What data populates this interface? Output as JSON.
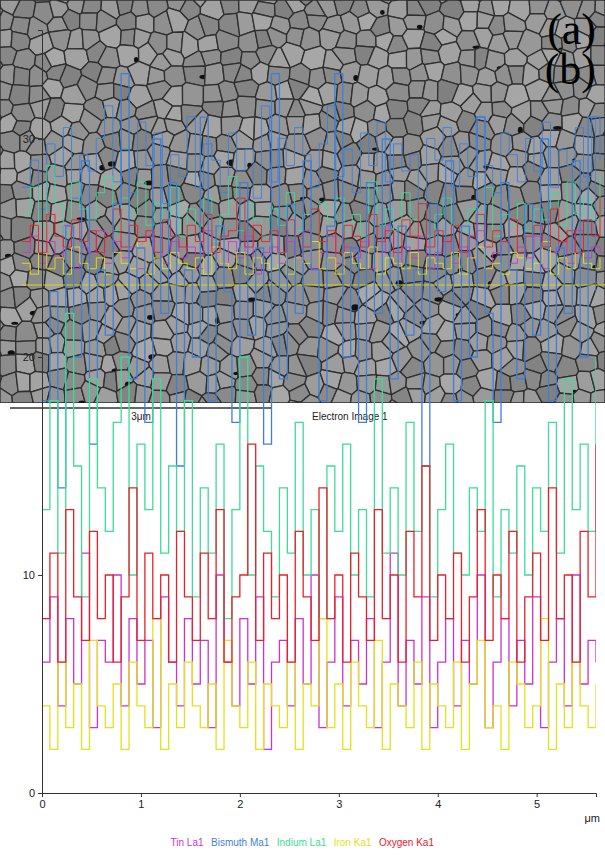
{
  "chart_data": [
    {
      "type": "image",
      "title": "(a)",
      "annotations": [
        "3μm",
        "Electron Image 1"
      ]
    },
    {
      "type": "line",
      "title": "(b)",
      "xlabel": "μm",
      "x": [
        0,
        0.08,
        0.16,
        0.24,
        0.32,
        0.4,
        0.48,
        0.56,
        0.64,
        0.72,
        0.8,
        0.88,
        0.96,
        1.04,
        1.12,
        1.2,
        1.28,
        1.36,
        1.44,
        1.52,
        1.6,
        1.68,
        1.76,
        1.84,
        1.92,
        2,
        2.08,
        2.16,
        2.24,
        2.32,
        2.4,
        2.48,
        2.56,
        2.64,
        2.72,
        2.8,
        2.88,
        2.96,
        3.04,
        3.12,
        3.2,
        3.28,
        3.36,
        3.44,
        3.52,
        3.6,
        3.68,
        3.76,
        3.84,
        3.92,
        4,
        4.08,
        4.16,
        4.24,
        4.32,
        4.4,
        4.48,
        4.56,
        4.64,
        4.72,
        4.8,
        4.88,
        4.96,
        5.04,
        5.12,
        5.2,
        5.28,
        5.36,
        5.44,
        5.52,
        5.6
      ],
      "series": [
        {
          "name": "Tin La1",
          "color": "#cc33cc",
          "values": [
            6,
            9,
            4,
            8,
            5,
            11,
            3,
            7,
            6,
            10,
            4,
            8,
            5,
            7,
            3,
            9,
            6,
            4,
            8,
            5,
            7,
            3,
            10,
            6,
            4,
            8,
            5,
            9,
            2,
            6,
            7,
            4,
            8,
            5,
            10,
            3,
            6,
            9,
            4,
            7,
            5,
            8,
            3,
            6,
            11,
            4,
            7,
            5,
            9,
            3,
            6,
            8,
            4,
            7,
            5,
            10,
            3,
            6,
            8,
            4,
            7,
            5,
            9,
            3,
            6,
            8,
            4,
            10,
            5,
            7,
            6
          ]
        },
        {
          "name": "Bismuth Ma1",
          "color": "#3f7fd9",
          "values": [
            18,
            23,
            14,
            26,
            20,
            29,
            16,
            24,
            21,
            27,
            33,
            19,
            25,
            17,
            30,
            22,
            28,
            15,
            24,
            20,
            31,
            18,
            26,
            23,
            17,
            28,
            21,
            25,
            16,
            33,
            19,
            27,
            22,
            29,
            24,
            18,
            26,
            33,
            20,
            25,
            17,
            28,
            22,
            30,
            19,
            26,
            21,
            24,
            15,
            27,
            23,
            29,
            18,
            26,
            20,
            31,
            22,
            17,
            28,
            24,
            19,
            27,
            21,
            30,
            18,
            25,
            22,
            29,
            20,
            31,
            23
          ]
        },
        {
          "name": "Indium La1",
          "color": "#3ddc97",
          "values": [
            13,
            18,
            11,
            22,
            15,
            9,
            19,
            14,
            12,
            17,
            20,
            10,
            16,
            13,
            19,
            11,
            15,
            12,
            18,
            9,
            14,
            11,
            16,
            8,
            13,
            20,
            10,
            15,
            12,
            9,
            14,
            11,
            17,
            10,
            13,
            8,
            15,
            12,
            16,
            10,
            13,
            9,
            19,
            11,
            14,
            10,
            17,
            12,
            15,
            9,
            13,
            16,
            11,
            10,
            14,
            12,
            18,
            9,
            13,
            11,
            15,
            10,
            14,
            12,
            17,
            11,
            19,
            13,
            16,
            12,
            20
          ]
        },
        {
          "name": "Iron Ka1",
          "color": "#e2e21c",
          "values": [
            4,
            2,
            6,
            3,
            5,
            2,
            7,
            4,
            3,
            5,
            2,
            6,
            4,
            3,
            8,
            2,
            5,
            3,
            6,
            4,
            3,
            5,
            2,
            7,
            4,
            3,
            6,
            2,
            5,
            4,
            3,
            6,
            2,
            5,
            4,
            8,
            3,
            5,
            2,
            6,
            4,
            3,
            7,
            2,
            5,
            4,
            3,
            6,
            2,
            5,
            4,
            3,
            6,
            2,
            5,
            7,
            3,
            4,
            2,
            6,
            5,
            3,
            4,
            8,
            2,
            5,
            3,
            6,
            4,
            3,
            5
          ]
        },
        {
          "name": "Oxygen Ka1",
          "color": "#e8202a",
          "values": [
            8,
            11,
            6,
            13,
            9,
            7,
            12,
            8,
            10,
            6,
            9,
            14,
            7,
            11,
            8,
            10,
            6,
            12,
            9,
            7,
            11,
            8,
            13,
            6,
            9,
            10,
            16,
            7,
            11,
            8,
            10,
            6,
            12,
            9,
            7,
            14,
            8,
            10,
            6,
            11,
            9,
            7,
            13,
            8,
            10,
            6,
            12,
            9,
            15,
            7,
            10,
            8,
            11,
            6,
            9,
            13,
            7,
            10,
            8,
            12,
            6,
            9,
            11,
            7,
            14,
            8,
            10,
            6,
            12,
            9,
            16
          ]
        }
      ],
      "xlim": [
        0,
        5.6
      ],
      "xticks": [
        0,
        1,
        2,
        3,
        4,
        5
      ],
      "ylim": [
        0,
        35
      ],
      "yticks": [
        0,
        10,
        20,
        30
      ],
      "grid": false,
      "legend": "bottom",
      "line_style": "step"
    }
  ]
}
